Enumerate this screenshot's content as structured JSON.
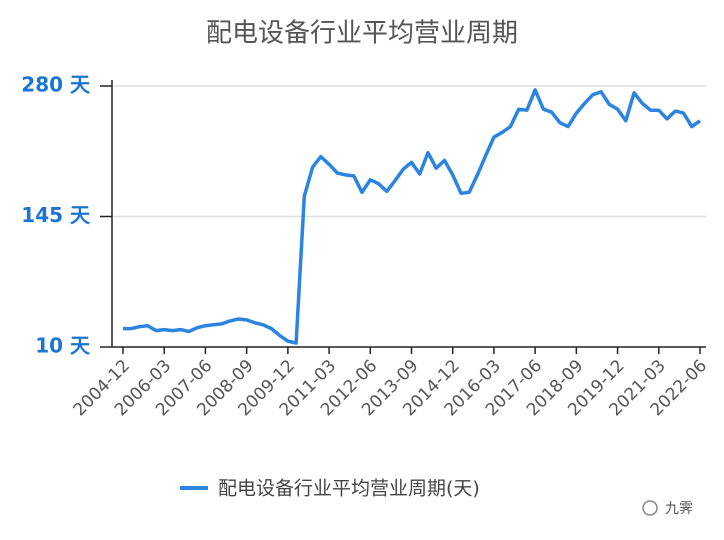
{
  "chart_data": {
    "type": "line",
    "title": "配电设备行业平均营业周期",
    "categories": [
      "2004-12",
      null,
      null,
      null,
      null,
      "2006-03",
      null,
      null,
      null,
      null,
      "2007-06",
      null,
      null,
      null,
      null,
      "2008-09",
      null,
      null,
      null,
      null,
      "2009-12",
      null,
      null,
      null,
      null,
      "2011-03",
      null,
      null,
      null,
      null,
      "2012-06",
      null,
      null,
      null,
      null,
      "2013-09",
      null,
      null,
      null,
      null,
      "2014-12",
      null,
      null,
      null,
      null,
      "2016-03",
      null,
      null,
      null,
      null,
      "2017-06",
      null,
      null,
      null,
      null,
      "2018-09",
      null,
      null,
      null,
      null,
      "2019-12",
      null,
      null,
      null,
      null,
      "2021-03",
      null,
      null,
      null,
      null,
      "2022-06"
    ],
    "series": [
      {
        "name": "配电设备行业平均营业周期(天)",
        "color": "#2a84e0",
        "values": [
          29,
          29,
          31,
          32,
          27,
          28,
          27,
          28,
          26,
          30,
          32,
          33,
          34,
          37,
          39,
          38,
          35,
          33,
          29,
          22,
          16,
          14,
          166,
          196,
          207,
          199,
          190,
          188,
          187,
          170,
          183,
          179,
          171,
          182,
          194,
          201,
          189,
          211,
          195,
          203,
          188,
          169,
          170,
          188,
          208,
          227,
          232,
          238,
          256,
          255,
          276,
          256,
          253,
          242,
          238,
          252,
          262,
          271,
          274,
          261,
          256,
          244,
          273,
          262,
          255,
          255,
          246,
          254,
          252,
          238,
          244
        ]
      }
    ],
    "ylim": [
      10,
      280
    ],
    "yticks": [
      {
        "value": 10,
        "label": "10 天"
      },
      {
        "value": 145,
        "label": "145 天"
      },
      {
        "value": 280,
        "label": "280 天"
      }
    ],
    "grid": true,
    "legend": "bottom",
    "watermark": "九霁"
  }
}
